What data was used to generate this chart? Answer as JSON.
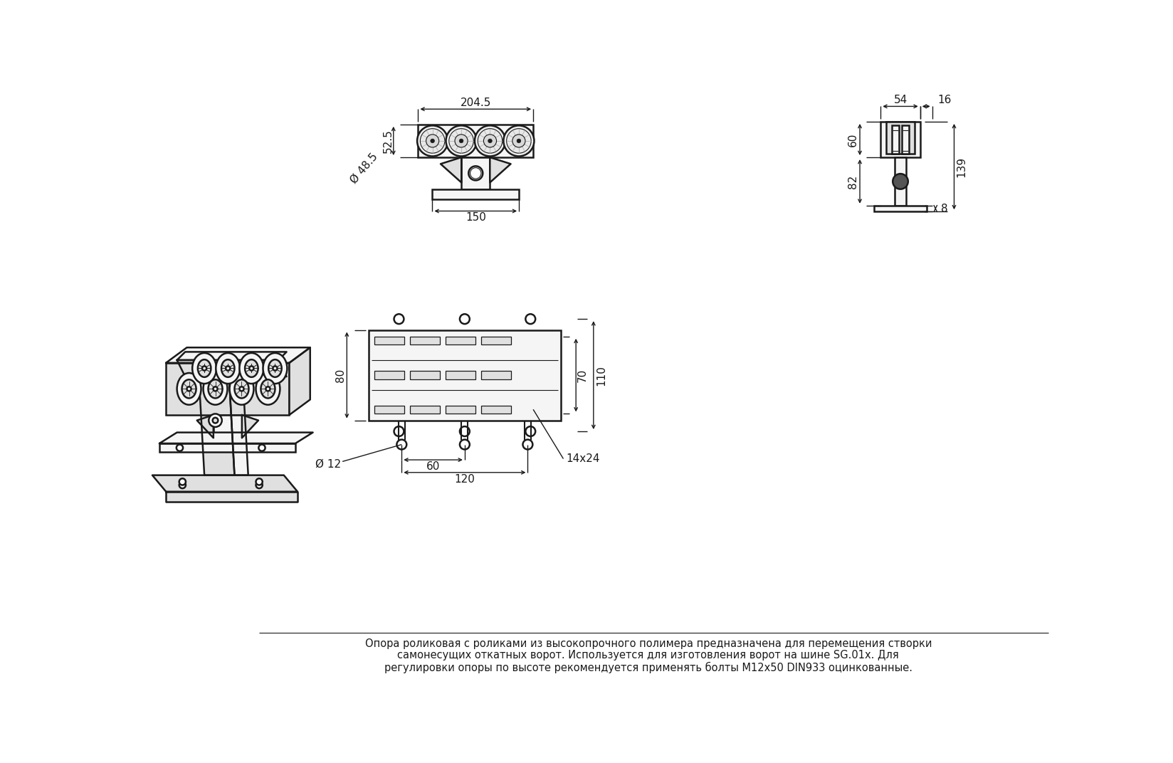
{
  "bg_color": "#ffffff",
  "line_color": "#1a1a1a",
  "dim_color": "#1a1a1a",
  "line1": "Опора роликовая с роликами из высокопрочного полимера предназначена для перемещения створки",
  "line2": "самонесущих откатных ворот. Используется для изготовления ворот на шине SG.01x. Для",
  "line3": "регулировки опоры по высоте рекомендуется применять болты М12х50 DIN933 оцинкованные.",
  "dim_204_5": "204.5",
  "dim_52_5": "52.5",
  "dim_48_5": "Ø 48.5",
  "dim_150": "150",
  "dim_54": "54",
  "dim_16": "16",
  "dim_60": "60",
  "dim_82": "82",
  "dim_139": "139",
  "dim_8": "8",
  "dim_80": "80",
  "dim_70": "70",
  "dim_110": "110",
  "dim_12": "Ø 12",
  "dim_60b": "60",
  "dim_120": "120",
  "dim_14x24": "14x24",
  "lw_main": 1.8,
  "lw_dim": 1.0,
  "fs": 11
}
